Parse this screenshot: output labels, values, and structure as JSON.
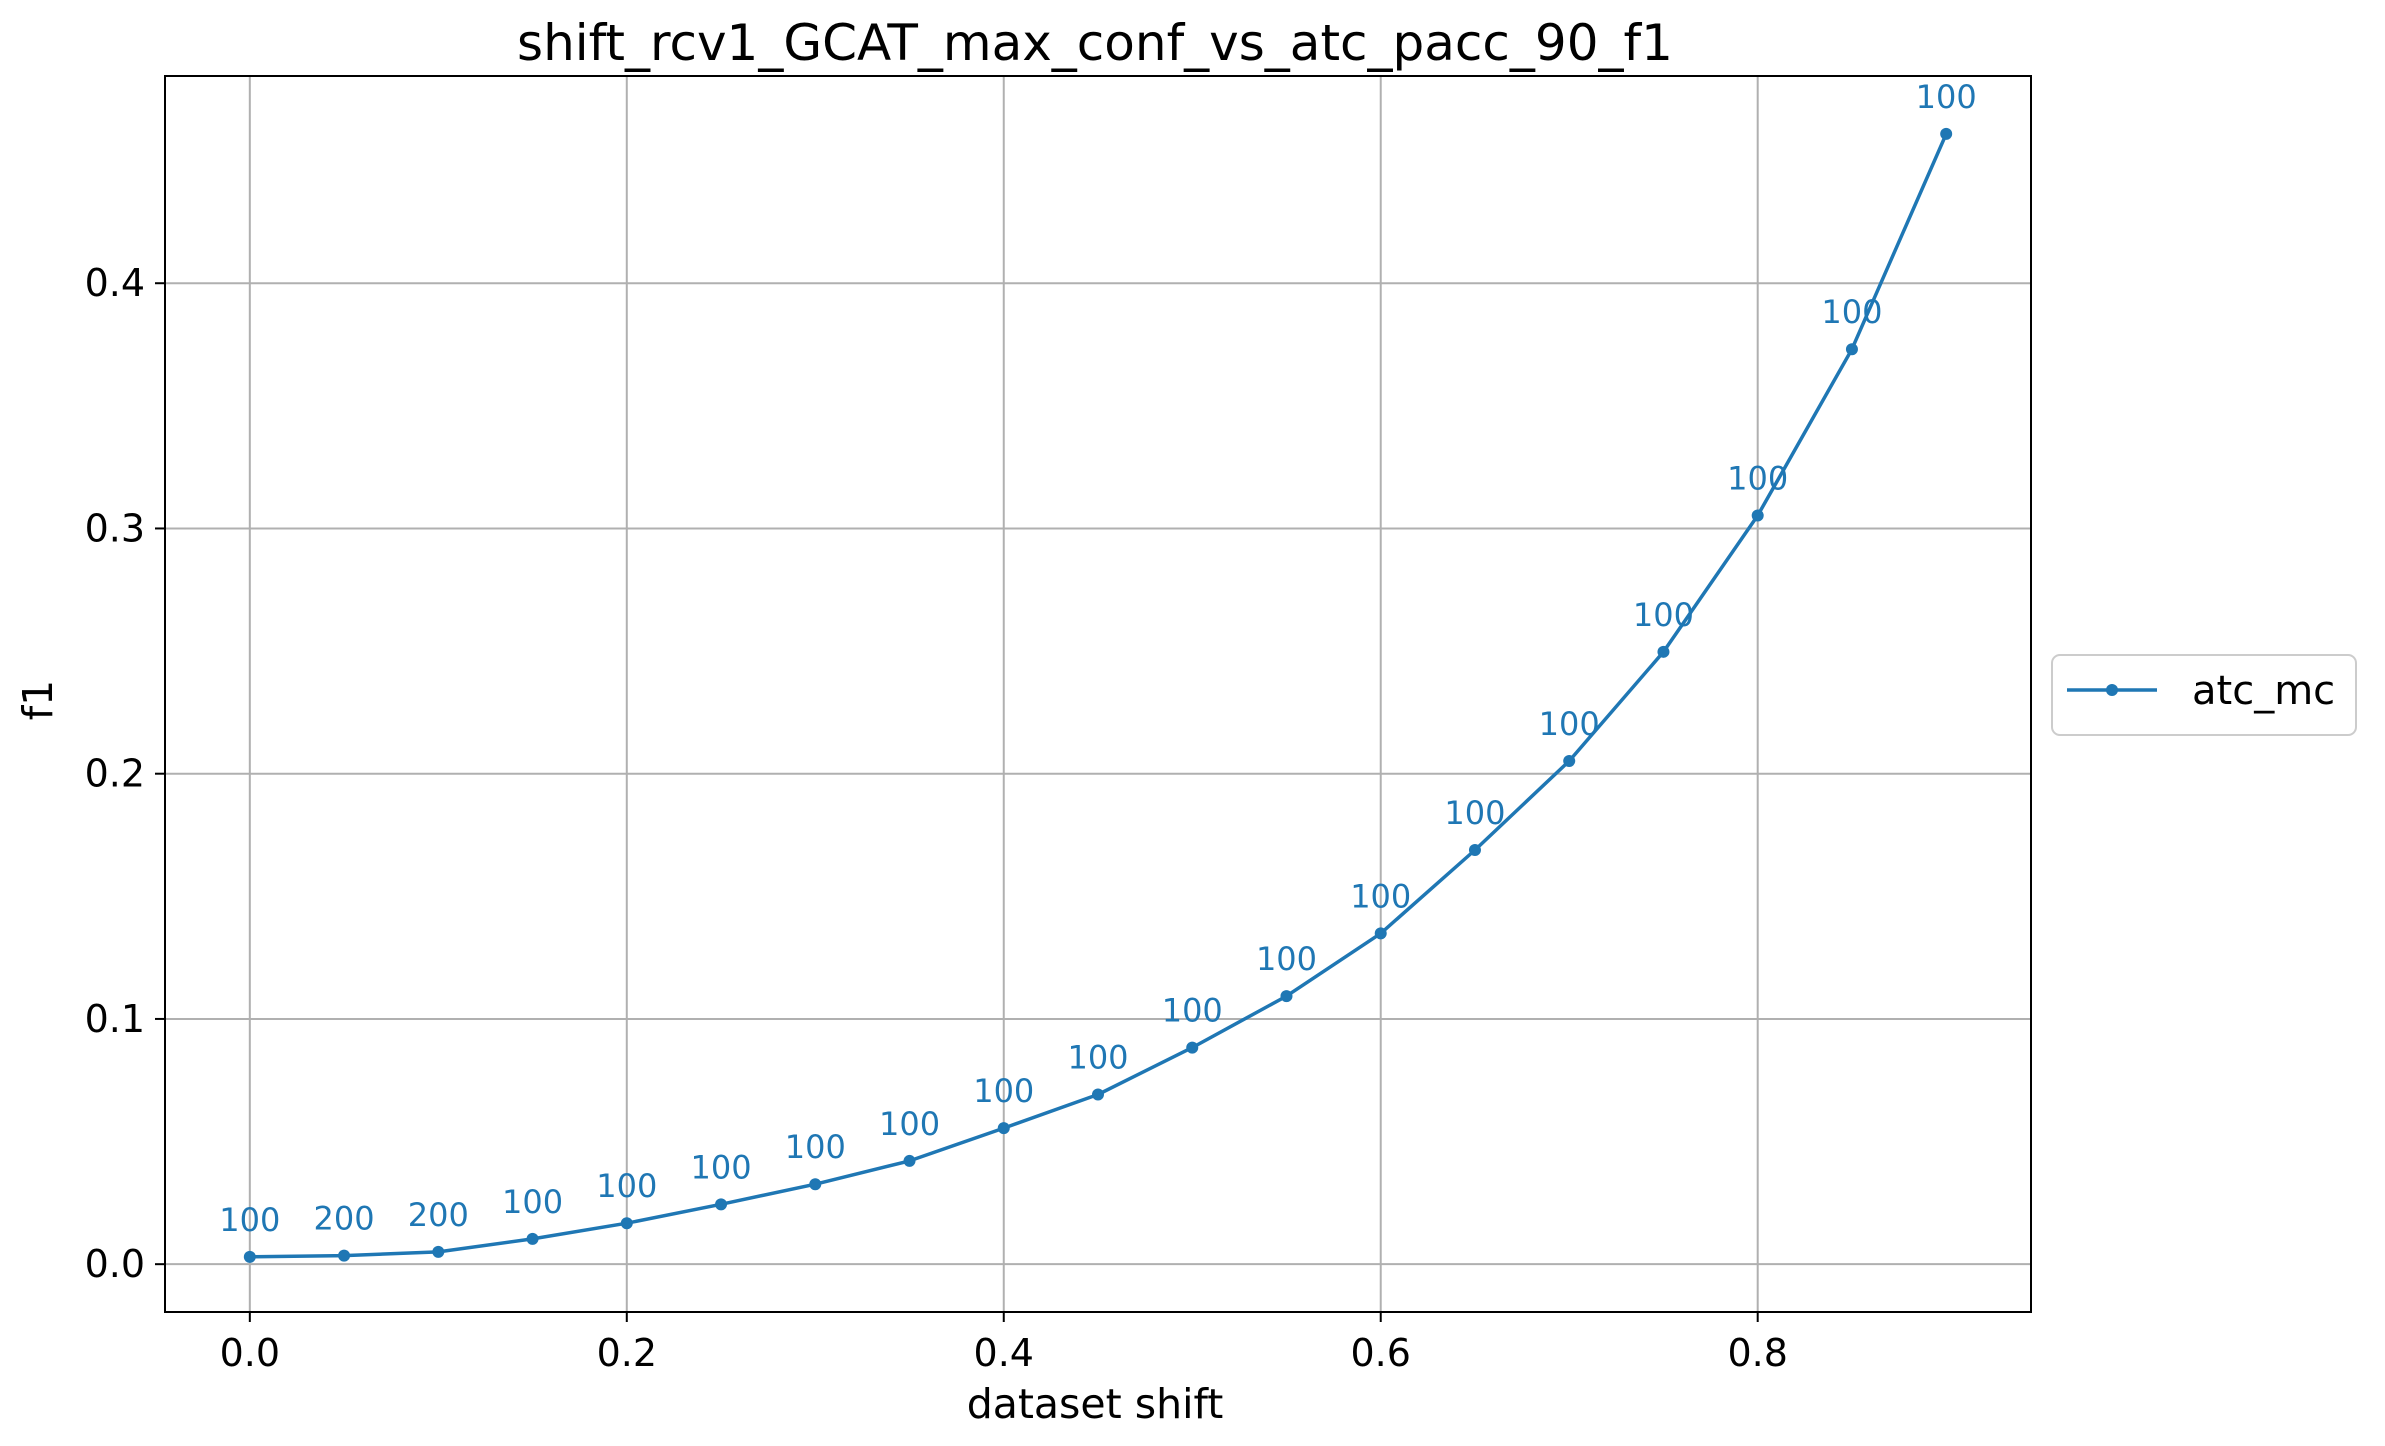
{
  "chart_data": {
    "type": "line",
    "title": "shift_rcv1_GCAT_max_conf_vs_atc_pacc_90_f1",
    "xlabel": "dataset shift",
    "ylabel": "f1",
    "xlim": [
      -0.045,
      0.945
    ],
    "ylim": [
      -0.0195,
      0.4845
    ],
    "xticks": [
      0.0,
      0.2,
      0.4,
      0.6,
      0.8
    ],
    "xtick_labels": [
      "0.0",
      "0.2",
      "0.4",
      "0.6",
      "0.8"
    ],
    "yticks": [
      0.0,
      0.1,
      0.2,
      0.3,
      0.4
    ],
    "ytick_labels": [
      "0.0",
      "0.1",
      "0.2",
      "0.3",
      "0.4"
    ],
    "grid": true,
    "legend_position": "outside-right",
    "series": [
      {
        "name": "atc_mc",
        "color": "#1f77b4",
        "marker": "dot",
        "x": [
          0.0,
          0.05,
          0.1,
          0.15,
          0.2,
          0.25,
          0.3,
          0.35,
          0.4,
          0.45,
          0.5,
          0.55,
          0.6,
          0.65,
          0.7,
          0.75,
          0.8,
          0.85,
          0.9
        ],
        "y": [
          0.003,
          0.0035,
          0.005,
          0.0103,
          0.0167,
          0.0244,
          0.0326,
          0.0421,
          0.0555,
          0.0692,
          0.0883,
          0.1093,
          0.1349,
          0.1689,
          0.2052,
          0.2497,
          0.3053,
          0.3731,
          0.4609
        ],
        "point_labels": [
          "100",
          "200",
          "200",
          "100",
          "100",
          "100",
          "100",
          "100",
          "100",
          "100",
          "100",
          "100",
          "100",
          "100",
          "100",
          "100",
          "100",
          "100",
          "100"
        ]
      }
    ]
  }
}
